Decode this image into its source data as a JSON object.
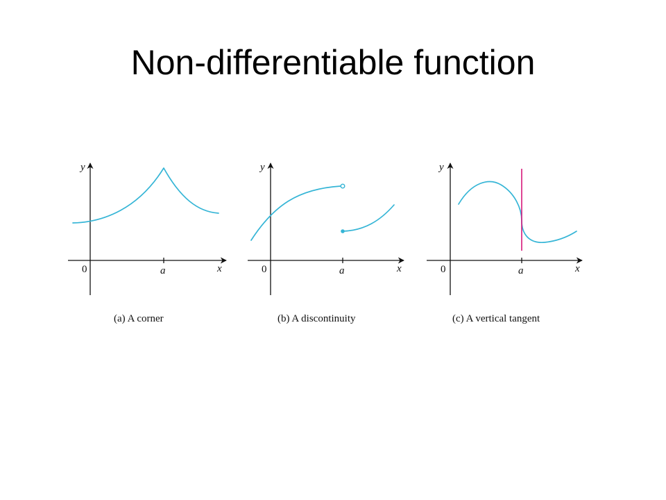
{
  "title": "Non-differentiable function",
  "colors": {
    "curve": "#35b5d6",
    "tangent": "#d6177a",
    "axis": "#111111"
  },
  "panels": [
    {
      "id": "a",
      "y_label": "y",
      "x_label": "x",
      "origin_label": "0",
      "a_label": "a",
      "caption": "(a) A corner",
      "feature": "corner at x = a"
    },
    {
      "id": "b",
      "y_label": "y",
      "x_label": "x",
      "origin_label": "0",
      "a_label": "a",
      "caption": "(b) A discontinuity",
      "feature": "jump discontinuity at x = a (open circle on left branch, filled dot on right branch)"
    },
    {
      "id": "c",
      "y_label": "y",
      "x_label": "x",
      "origin_label": "0",
      "a_label": "a",
      "caption": "(c) A vertical tangent",
      "feature": "vertical tangent line at x = a"
    }
  ]
}
